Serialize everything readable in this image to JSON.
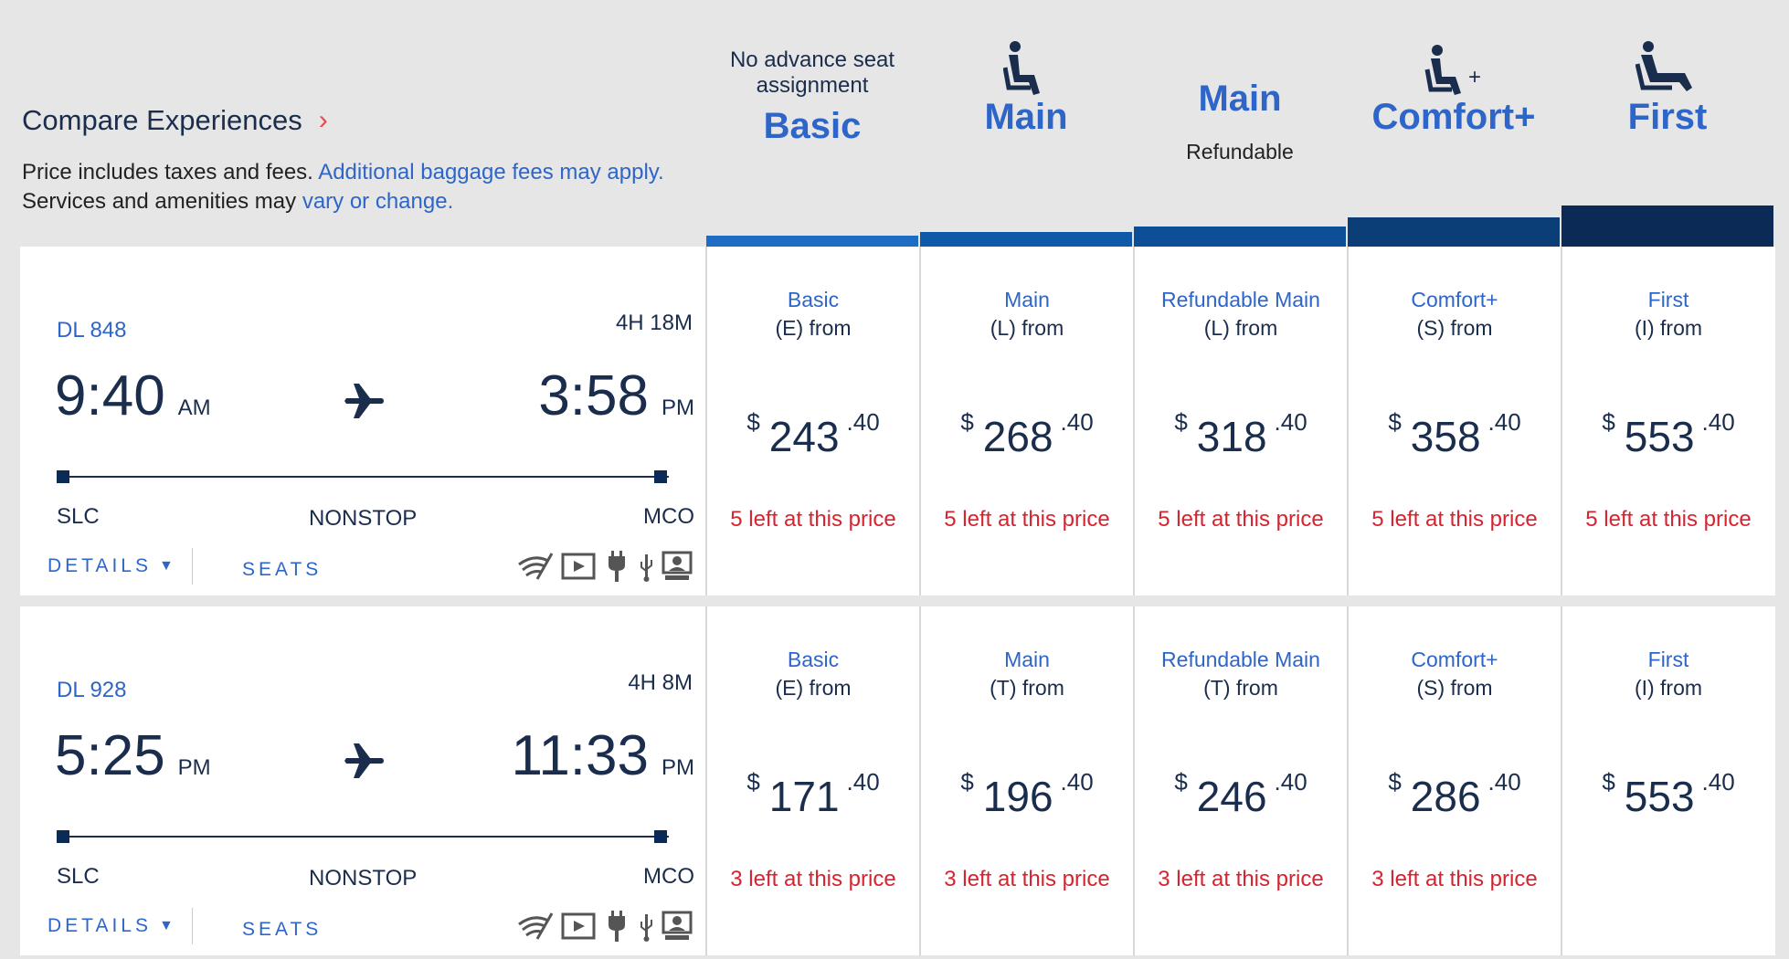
{
  "header": {
    "compare_label": "Compare Experiences",
    "price_note_1": "Price includes taxes and fees.",
    "baggage_link": "Additional baggage fees may apply.",
    "price_note_2": "Services and amenities may",
    "vary_link": "vary or change."
  },
  "columns": [
    {
      "sub": "No advance seat assignment",
      "title": "Basic",
      "icon": "none",
      "note": "",
      "bar_color": "#1f6cc4"
    },
    {
      "sub": "",
      "title": "Main",
      "icon": "seat-icon",
      "note": "",
      "bar_color": "#0f5aa8"
    },
    {
      "sub": "",
      "title": "Main",
      "icon": "none",
      "note": "Refundable",
      "bar_color": "#0d4f97"
    },
    {
      "sub": "",
      "title": "Comfort+",
      "icon": "seat-plus-icon",
      "note": "",
      "bar_color": "#0b3d77"
    },
    {
      "sub": "",
      "title": "First",
      "icon": "recliner-icon",
      "note": "",
      "bar_color": "#0b2a55"
    }
  ],
  "details_label": "DETAILS",
  "seats_label": "SEATS",
  "amenities": [
    "wifi-icon",
    "entertainment-icon",
    "power-icon",
    "usb-icon",
    "personal-screen-icon"
  ],
  "flights": [
    {
      "number": "DL 848",
      "duration": "4H 18M",
      "depart_time": "9:40",
      "depart_ampm": "AM",
      "arrive_time": "3:58",
      "arrive_ampm": "PM",
      "origin": "SLC",
      "stops": "NONSTOP",
      "destination": "MCO",
      "fares": [
        {
          "name": "Basic",
          "cls": "(E) from",
          "currency": "$",
          "dollars": "243",
          "cents": ".40",
          "seats_left": "5 left at this price"
        },
        {
          "name": "Main",
          "cls": "(L) from",
          "currency": "$",
          "dollars": "268",
          "cents": ".40",
          "seats_left": "5 left at this price"
        },
        {
          "name": "Refundable Main",
          "cls": "(L) from",
          "currency": "$",
          "dollars": "318",
          "cents": ".40",
          "seats_left": "5 left at this price"
        },
        {
          "name": "Comfort+",
          "cls": "(S) from",
          "currency": "$",
          "dollars": "358",
          "cents": ".40",
          "seats_left": "5 left at this price"
        },
        {
          "name": "First",
          "cls": "(I) from",
          "currency": "$",
          "dollars": "553",
          "cents": ".40",
          "seats_left": "5 left at this price"
        }
      ]
    },
    {
      "number": "DL 928",
      "duration": "4H 8M",
      "depart_time": "5:25",
      "depart_ampm": "PM",
      "arrive_time": "11:33",
      "arrive_ampm": "PM",
      "origin": "SLC",
      "stops": "NONSTOP",
      "destination": "MCO",
      "fares": [
        {
          "name": "Basic",
          "cls": "(E) from",
          "currency": "$",
          "dollars": "171",
          "cents": ".40",
          "seats_left": "3 left at this price"
        },
        {
          "name": "Main",
          "cls": "(T) from",
          "currency": "$",
          "dollars": "196",
          "cents": ".40",
          "seats_left": "3 left at this price"
        },
        {
          "name": "Refundable Main",
          "cls": "(T) from",
          "currency": "$",
          "dollars": "246",
          "cents": ".40",
          "seats_left": "3 left at this price"
        },
        {
          "name": "Comfort+",
          "cls": "(S) from",
          "currency": "$",
          "dollars": "286",
          "cents": ".40",
          "seats_left": "3 left at this price"
        },
        {
          "name": "First",
          "cls": "(I) from",
          "currency": "$",
          "dollars": "553",
          "cents": ".40",
          "seats_left": ""
        }
      ]
    }
  ]
}
